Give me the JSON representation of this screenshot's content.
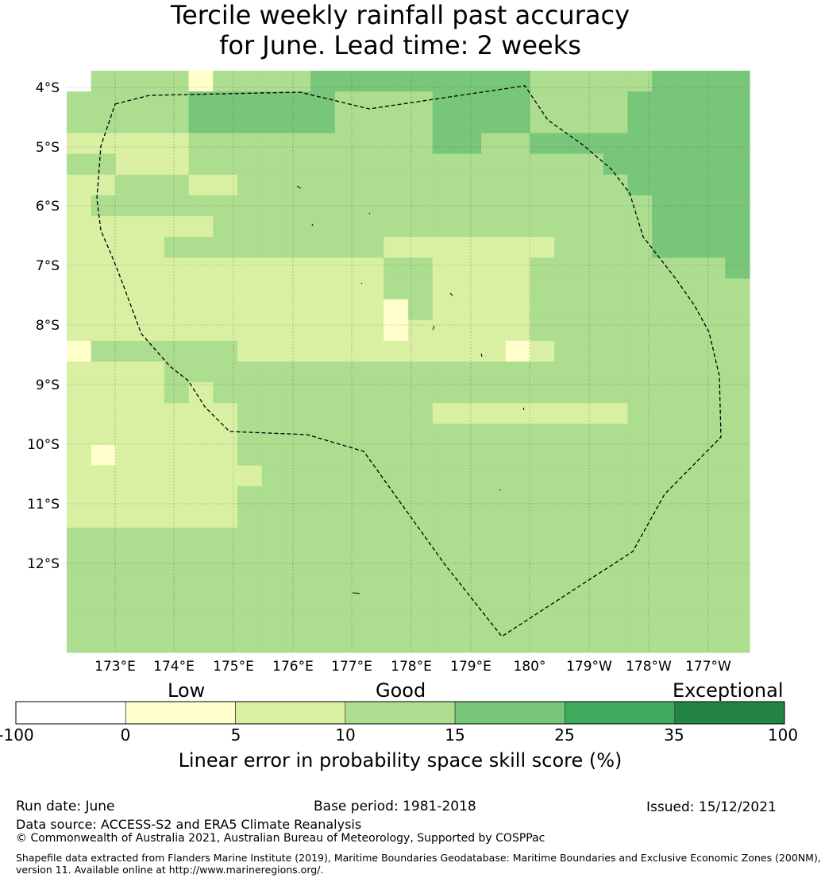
{
  "title_line1": "Tercile weekly rainfall past accuracy",
  "title_line2": "for June. Lead time: 2 weeks",
  "map": {
    "lon_ticks": [
      "173°E",
      "174°E",
      "175°E",
      "176°E",
      "177°E",
      "178°E",
      "179°E",
      "180°",
      "179°W",
      "178°W",
      "177°W"
    ],
    "lat_ticks": [
      "4°S",
      "5°S",
      "6°S",
      "7°S",
      "8°S",
      "9°S",
      "10°S",
      "11°S",
      "12°S"
    ],
    "palette": {
      "c0": "#ffffcc",
      "c5": "#d9f0a3",
      "c10": "#addd8e",
      "c15": "#78c679",
      "c25": "#41ab5d",
      "c35": "#238443"
    },
    "grid_rows": [
      "fbbbbdbbbbaaaaaaaaabbbbbaaaa",
      "bbbbbaaaaaabbbbaaaabbbbaaaaa",
      "bbbbbaaaaaabbbbaaaabbbbaaaaa",
      "cccccbbbbbbbbbbaabbaaaaaaaaa",
      "bbcccbbbbbbbbbbbbbbbbbaaaaaa",
      "ccbbbccbbbbbbbbbbbbbbbbaaaaa",
      "cbbbbbbbbbbbbbbbbbbbbbbbaaaa",
      "ccccccbbbbbbbbbbbbbbbbbbaaaa",
      "ccccbbbbbbbbbcccccccbbbbaaaa",
      "cccccccccccccbbccccbbbbbbbba",
      "cccccccccccccbbccccbbbbbbbbb",
      "cccccccccccccdbccccbbbbbbbbb",
      "cccccccccccccdcccccbbbbbbbbb",
      "dbbbbbbcccccccccccdcbbbbbbbb",
      "ccccbbbbbbbbbbbbbbbbbbbbbbbb",
      "ccccbcbbbbbbbbbbbbbbbbbbbbbb",
      "cccccccbbbbbbbbccccccccbbbbb",
      "cccccccbbbbbbbbbbbbbbbbbbbbb",
      "cdcccccbbbbbbbbbbbbbbbbbbbbb",
      "ccccccccbbbbbbbbbbbbbbbbbbbb",
      "cccccccbbbbbbbbbbbbbbbbbbbbb",
      "cccccccbbbbbbbbbbbbbbbbbbbbb",
      "bbbbbbbbbbbbbbbbbbbbbbbbbbbb",
      "bbbbbbbbbbbbbbbbbbbbbbbbbbbb",
      "bbbbbbbbbbbbbbbbbbbbbbbbbbbb",
      "bbbbbbbbbbbbbbbbbbbbbbbbbbbb",
      "bbbbbbbbbbbbbbbbbbbbbbbbbbbb",
      "bbbbbbbbbbbbbbbbbbbbbbbbbbbb"
    ]
  },
  "colorbar": {
    "categories": [
      "Low",
      "Good",
      "Exceptional"
    ],
    "ticks": [
      "-100",
      "0",
      "5",
      "10",
      "15",
      "25",
      "35",
      "100"
    ],
    "colors": [
      "#ffffff",
      "#ffffcc",
      "#d9f0a3",
      "#addd8e",
      "#78c679",
      "#41ab5d",
      "#238443"
    ],
    "label": "Linear error in probability space skill score (%)"
  },
  "footer": {
    "run_date": "Run date: June",
    "base_period": "Base period: 1981-2018",
    "issued": "Issued: 15/12/2021",
    "data_source": "Data source: ACCESS-S2 and ERA5 Climate Reanalysis",
    "copyright": "© Commonwealth of Australia 2021, Australian Bureau of Meteorology, Supported by COSPPac",
    "shapefile_line1": "Shapefile data extracted from Flanders Marine Institute (2019), Maritime Boundaries Geodatabase: Maritime Boundaries and Exclusive Economic Zones (200NM),",
    "shapefile_line2": "version 11. Available online at http://www.marineregions.org/."
  }
}
